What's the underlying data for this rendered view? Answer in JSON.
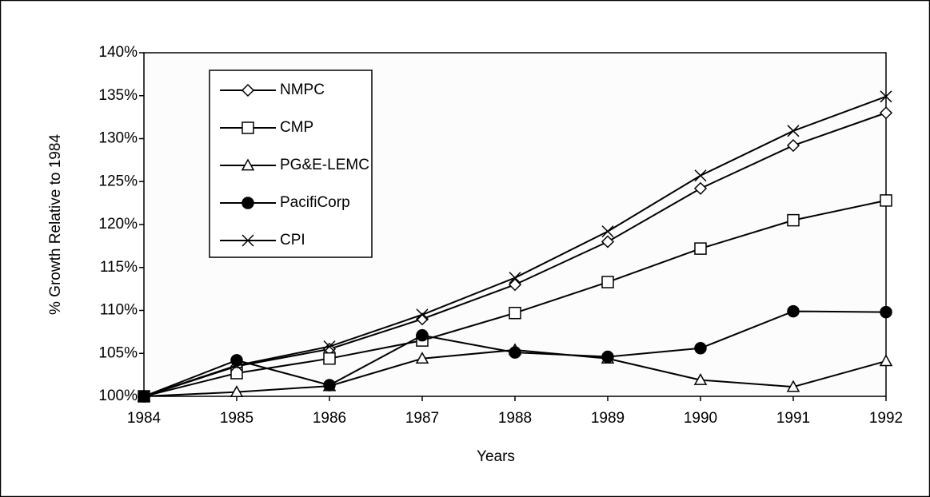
{
  "chart_data": {
    "type": "line",
    "x": [
      1984,
      1985,
      1986,
      1987,
      1988,
      1989,
      1990,
      1991,
      1992
    ],
    "xlim": [
      1984,
      1992
    ],
    "xticks": [
      1984,
      1985,
      1986,
      1987,
      1988,
      1989,
      1990,
      1991,
      1992
    ],
    "ylim": [
      100,
      140
    ],
    "yticks": [
      {
        "value": 100,
        "label": "100%"
      },
      {
        "value": 105,
        "label": "105%"
      },
      {
        "value": 110,
        "label": "110%"
      },
      {
        "value": 115,
        "label": "115%"
      },
      {
        "value": 120,
        "label": "120%"
      },
      {
        "value": 125,
        "label": "125%"
      },
      {
        "value": 130,
        "label": "130%"
      },
      {
        "value": 135,
        "label": "135%"
      },
      {
        "value": 140,
        "label": "140%"
      }
    ],
    "x_label": "Years",
    "y_label": "% Growth Relative to 1984",
    "legend": "upper left",
    "series": [
      {
        "name": "NMPC",
        "color": "#000000",
        "marker": "diamond",
        "values": [
          100,
          103.5,
          105.5,
          109,
          113,
          118,
          124.2,
          129.2,
          133
        ]
      },
      {
        "name": "CMP",
        "color": "#000000",
        "marker": "square",
        "values": [
          100,
          102.7,
          104.4,
          106.5,
          109.7,
          113.3,
          117.2,
          120.5,
          122.8
        ]
      },
      {
        "name": "PG&E-LEMC",
        "color": "#000000",
        "marker": "triangle",
        "values": [
          100,
          100.5,
          101.2,
          104.4,
          105.4,
          104.4,
          101.9,
          101.1,
          104.1
        ]
      },
      {
        "name": "PacifiCorp",
        "color": "#000000",
        "marker": "circle",
        "values": [
          100,
          104.2,
          101.3,
          107.1,
          105.1,
          104.6,
          105.6,
          109.9,
          109.8
        ]
      },
      {
        "name": "CPI",
        "color": "#000000",
        "marker": "x",
        "values": [
          100,
          103.6,
          105.8,
          109.5,
          113.8,
          119.2,
          125.7,
          130.9,
          134.9
        ]
      }
    ]
  }
}
